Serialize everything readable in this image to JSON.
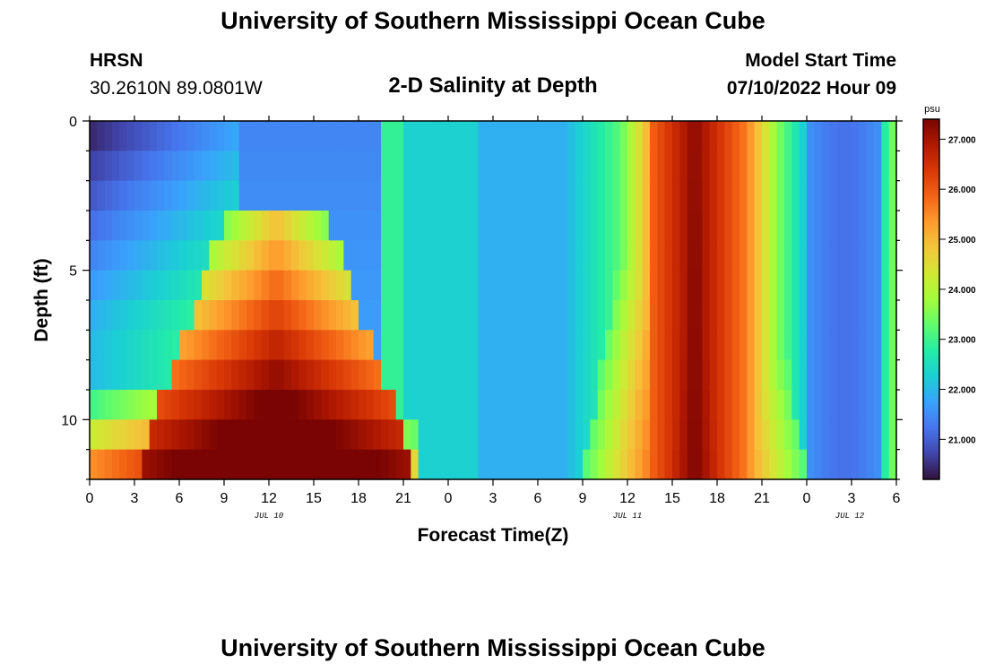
{
  "page": {
    "title": "University of Southern Mississippi Ocean Cube",
    "footer_title": "University of Southern Mississippi Ocean Cube",
    "station": "HRSN",
    "location": "30.2610N  89.0801W",
    "subtitle": "2-D Salinity at Depth",
    "model_label": "Model Start Time",
    "model_time": "07/10/2022 Hour 09"
  },
  "chart_data": {
    "type": "heatmap",
    "title": "2-D Salinity at Depth",
    "xlabel": "Forecast Time(Z)",
    "ylabel": "Depth (ft)",
    "colorbar_unit": "psu",
    "colorbar_ticks": [
      "21.000",
      "22.000",
      "23.000",
      "24.000",
      "25.000",
      "26.000",
      "27.000"
    ],
    "zlim": [
      20.2,
      27.4
    ],
    "x_tick_labels": [
      "0",
      "3",
      "6",
      "9",
      "12",
      "15",
      "18",
      "21",
      "0",
      "3",
      "6",
      "9",
      "12",
      "15",
      "18",
      "21",
      "0",
      "3",
      "6"
    ],
    "x_hours_range": [
      0,
      54
    ],
    "date_labels": [
      {
        "hour": 12,
        "label": "JUL 10"
      },
      {
        "hour": 36,
        "label": "JUL 11"
      },
      {
        "hour": 51,
        "label": "JUL 12"
      }
    ],
    "y_tick_labels": [
      "0",
      "5",
      "10"
    ],
    "ylim": [
      0,
      12
    ],
    "depth_bin_ft": 1,
    "time_bin_hours": 0.5,
    "colors": [
      "#30123b",
      "#4145ab",
      "#4675ed",
      "#39a2fc",
      "#1bcfd4",
      "#24eca6",
      "#61fc6c",
      "#a4fc3b",
      "#d1e834",
      "#f3c63a",
      "#fe9b2d",
      "#f36315",
      "#d93806",
      "#b11901",
      "#7a0403"
    ]
  }
}
